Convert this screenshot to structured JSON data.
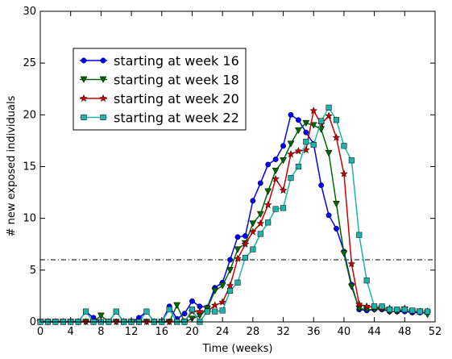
{
  "chart_data": {
    "type": "line",
    "xlabel": "Time (weeks)",
    "ylabel": "# new exposed individuals",
    "xlim": [
      0,
      52
    ],
    "ylim": [
      0,
      30
    ],
    "xticks": [
      0,
      4,
      8,
      12,
      16,
      20,
      24,
      28,
      32,
      36,
      40,
      44,
      48,
      52
    ],
    "yticks": [
      0,
      5,
      10,
      15,
      20,
      25,
      30
    ],
    "grid": false,
    "legend_position": "upper-left",
    "threshold": {
      "y": 6,
      "style": "dash-dot",
      "color": "#000000"
    },
    "x": [
      0,
      1,
      2,
      3,
      4,
      5,
      6,
      7,
      8,
      9,
      10,
      11,
      12,
      13,
      14,
      15,
      16,
      17,
      18,
      19,
      20,
      21,
      22,
      23,
      24,
      25,
      26,
      27,
      28,
      29,
      30,
      31,
      32,
      33,
      34,
      35,
      36,
      37,
      38,
      39,
      40,
      41,
      42,
      43,
      44,
      45,
      46,
      47,
      48,
      49,
      50,
      51
    ],
    "series": [
      {
        "name": "starting at week 16",
        "color": "#0000ff",
        "marker": "circle",
        "values": [
          0,
          0,
          0,
          0,
          0,
          0,
          1,
          0.4,
          0,
          0,
          1,
          0,
          0,
          0.4,
          1,
          0,
          0,
          1.5,
          0.3,
          0.8,
          2,
          1.5,
          1.4,
          3.3,
          3.8,
          6,
          8.2,
          8.3,
          11.7,
          13.4,
          15.2,
          15.7,
          17,
          20,
          19.5,
          18.3,
          17.2,
          13.2,
          10.3,
          9,
          6.8,
          3.6,
          1.2,
          1.1,
          1.2,
          1.2,
          1,
          1,
          1,
          0.9,
          0.9,
          0.9
        ]
      },
      {
        "name": "starting at week 18",
        "color": "#006600",
        "marker": "triangle-down",
        "values": [
          0,
          0,
          0,
          0,
          0,
          0,
          0,
          0,
          0.6,
          0,
          0,
          0,
          0,
          0,
          0,
          0,
          0,
          0,
          1.6,
          0,
          0.3,
          0.6,
          1.3,
          3,
          3.5,
          5,
          7,
          7.6,
          9.5,
          10.4,
          12.6,
          14.6,
          15.6,
          17.2,
          18.5,
          19.2,
          19,
          18.6,
          16.3,
          11.4,
          6.6,
          3.4,
          1.3,
          1.2,
          1.2,
          1.3,
          1,
          1,
          1.2,
          1,
          1,
          0.7
        ]
      },
      {
        "name": "starting at week 20",
        "color": "#cc0000",
        "marker": "star",
        "values": [
          0,
          0,
          0,
          0,
          0,
          0,
          0,
          0,
          0,
          0,
          0,
          0,
          0,
          0,
          0,
          0,
          0,
          0,
          0,
          0,
          1,
          1,
          1,
          1.6,
          1.9,
          3.5,
          6.1,
          7.5,
          8.7,
          9.5,
          11.3,
          13.8,
          12.7,
          16.2,
          16.5,
          16.6,
          20.4,
          19.1,
          19.9,
          17.8,
          14.3,
          5.6,
          1.7,
          1.5,
          1.4,
          1.3,
          1.3,
          1.1,
          1.3,
          1,
          1,
          1
        ]
      },
      {
        "name": "starting at week 22",
        "color": "#20b2aa",
        "marker": "square",
        "values": [
          0,
          0,
          0,
          0,
          0,
          0,
          1,
          0,
          0,
          0,
          1,
          0,
          0,
          0,
          1,
          0,
          0,
          1.2,
          0,
          0,
          1.2,
          0,
          1,
          1,
          1.1,
          3,
          3.8,
          6.2,
          7,
          8.5,
          9.6,
          10.9,
          11,
          13.9,
          15,
          17.4,
          17.1,
          19.4,
          20.7,
          19.5,
          17,
          15.6,
          8.4,
          4,
          1.5,
          1.5,
          1.2,
          1.2,
          1.2,
          1.1,
          1,
          1
        ]
      }
    ]
  }
}
